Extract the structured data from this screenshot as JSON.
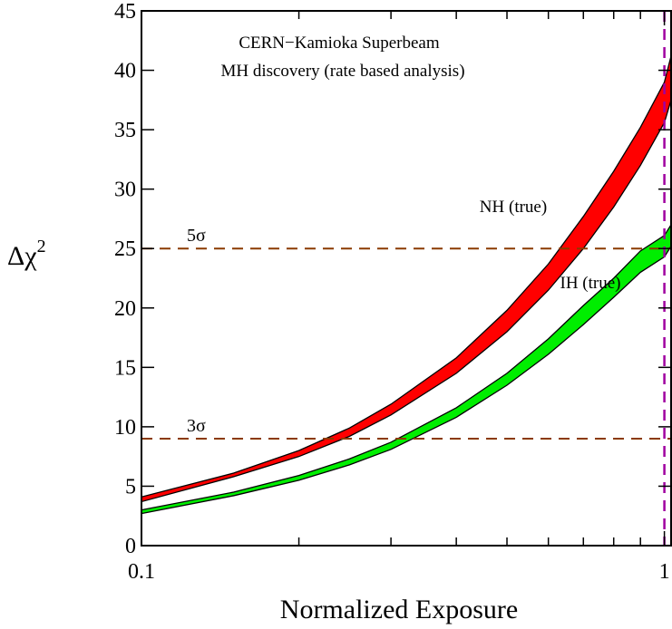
{
  "chart_data": {
    "type": "area",
    "title": "CERN−Kamioka Superbeam",
    "subtitle": "MH discovery (rate based analysis)",
    "xlabel": "Normalized Exposure",
    "ylabel": "Δχ",
    "ylabel_sup": "2",
    "x_scale": "log",
    "xlim": [
      0.1,
      1.03
    ],
    "ylim": [
      0,
      45
    ],
    "x_ticks": [
      {
        "value": 0.1,
        "label": "0.1"
      },
      {
        "value": 1,
        "label": "1"
      }
    ],
    "y_ticks": [
      {
        "value": 0,
        "label": "0"
      },
      {
        "value": 5,
        "label": "5"
      },
      {
        "value": 10,
        "label": "10"
      },
      {
        "value": 15,
        "label": "15"
      },
      {
        "value": 20,
        "label": "20"
      },
      {
        "value": 25,
        "label": "25"
      },
      {
        "value": 30,
        "label": "30"
      },
      {
        "value": 35,
        "label": "35"
      },
      {
        "value": 40,
        "label": "40"
      },
      {
        "value": 45,
        "label": "45"
      }
    ],
    "x": [
      0.1,
      0.15,
      0.2,
      0.25,
      0.3,
      0.4,
      0.5,
      0.6,
      0.7,
      0.8,
      0.9,
      1.0,
      1.03
    ],
    "series": [
      {
        "name": "NH (true)",
        "color": "#ff0000",
        "upper": [
          4.1,
          6.1,
          8.0,
          9.9,
          11.9,
          15.8,
          19.8,
          23.7,
          27.7,
          31.5,
          35.2,
          39.0,
          41.2
        ],
        "lower": [
          3.7,
          5.8,
          7.5,
          9.2,
          11.0,
          14.5,
          18.0,
          21.5,
          25.0,
          28.5,
          32.0,
          35.6,
          37.5
        ]
      },
      {
        "name": "IH (true)",
        "color": "#00ee00",
        "upper": [
          3.0,
          4.5,
          5.9,
          7.3,
          8.7,
          11.6,
          14.5,
          17.4,
          20.2,
          22.5,
          24.8,
          26.1,
          27.0
        ],
        "lower": [
          2.7,
          4.2,
          5.5,
          6.8,
          8.1,
          10.8,
          13.5,
          16.1,
          18.6,
          20.9,
          23.0,
          24.3,
          25.2
        ]
      }
    ],
    "hlines": [
      {
        "value": 25,
        "label": "5σ",
        "color": "#8b3a00"
      },
      {
        "value": 9,
        "label": "3σ",
        "color": "#8b3a00"
      }
    ],
    "vline": {
      "value": 1,
      "color": "#a000a0"
    },
    "grid": false
  }
}
